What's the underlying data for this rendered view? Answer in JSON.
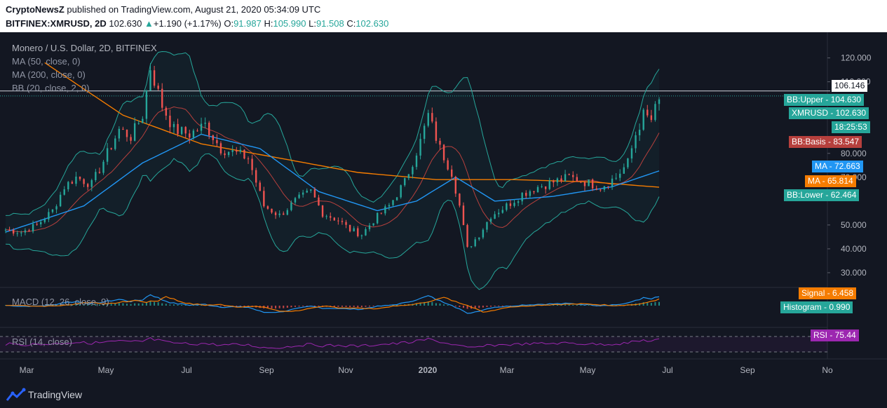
{
  "header": {
    "publisher": "CryptoNewsZ",
    "published_text": "published on TradingView.com, August 21, 2020 05:34:09 UTC",
    "symbol": "BITFINEX:XMRUSD, 2D",
    "last": "102.630",
    "change_arrow": "▲",
    "change": "+1.190 (+1.17%)",
    "o_label": "O:",
    "o_value": "91.987",
    "h_label": "H:",
    "h_value": "105.990",
    "l_label": "L:",
    "l_value": "91.508",
    "c_label": "C:",
    "c_value": "102.630"
  },
  "legend": {
    "title": "Monero / U.S. Dollar, 2D, BITFINEX",
    "ma50": "MA (50, close, 0)",
    "ma200": "MA (200, close, 0)",
    "bb": "BB (20, close, 2, 0)",
    "macd": "MACD (12, 26, close, 9)",
    "rsi": "RSI (14, close)"
  },
  "tags": {
    "crosshair": "106.146",
    "bb_upper": "BB:Upper - 104.630",
    "xmrusd": "XMRUSD - 102.630",
    "countdown": "18:25:53",
    "bb_basis": "BB:Basis - 83.547",
    "ma_blue": "MA - 72.663",
    "ma_orange": "MA - 65.814",
    "bb_lower": "BB:Lower - 62.464",
    "signal": "Signal - 6.458",
    "histogram": "Histogram - 0.990",
    "rsi": "RSI - 75.44"
  },
  "colors": {
    "background": "#131722",
    "up": "#26a69a",
    "down": "#ef5350",
    "ma50": "#2196f3",
    "ma200": "#f57c00",
    "bb": "#26a69a",
    "bb_basis": "#b7403d",
    "macd": "#2196f3",
    "signal": "#f57c00",
    "rsi": "#9c27b0"
  },
  "footer": {
    "brand": "TradingView"
  },
  "chart_data": {
    "type": "candlestick",
    "symbol": "XMRUSD",
    "y_ticks": [
      "120.000",
      "110.000",
      "80.000",
      "70.000",
      "50.000",
      "40.000",
      "30.000"
    ],
    "ylim": [
      25,
      124
    ],
    "x_tick_labels": [
      "Mar",
      "May",
      "Jul",
      "Sep",
      "Nov",
      "2020",
      "Mar",
      "May",
      "Jul",
      "Sep",
      "No"
    ],
    "close_series": [
      {
        "t": 0,
        "v": 48
      },
      {
        "t": 8,
        "v": 47
      },
      {
        "t": 16,
        "v": 50
      },
      {
        "t": 24,
        "v": 56
      },
      {
        "t": 30,
        "v": 66
      },
      {
        "t": 36,
        "v": 70
      },
      {
        "t": 44,
        "v": 67
      },
      {
        "t": 52,
        "v": 80
      },
      {
        "t": 58,
        "v": 90
      },
      {
        "t": 64,
        "v": 87
      },
      {
        "t": 70,
        "v": 96
      },
      {
        "t": 74,
        "v": 116
      },
      {
        "t": 80,
        "v": 100
      },
      {
        "t": 86,
        "v": 90
      },
      {
        "t": 94,
        "v": 88
      },
      {
        "t": 102,
        "v": 92
      },
      {
        "t": 110,
        "v": 82
      },
      {
        "t": 118,
        "v": 80
      },
      {
        "t": 124,
        "v": 78
      },
      {
        "t": 132,
        "v": 58
      },
      {
        "t": 140,
        "v": 54
      },
      {
        "t": 148,
        "v": 60
      },
      {
        "t": 156,
        "v": 64
      },
      {
        "t": 162,
        "v": 55
      },
      {
        "t": 170,
        "v": 52
      },
      {
        "t": 176,
        "v": 48
      },
      {
        "t": 182,
        "v": 46
      },
      {
        "t": 188,
        "v": 52
      },
      {
        "t": 196,
        "v": 58
      },
      {
        "t": 204,
        "v": 68
      },
      {
        "t": 212,
        "v": 85
      },
      {
        "t": 216,
        "v": 96
      },
      {
        "t": 222,
        "v": 82
      },
      {
        "t": 228,
        "v": 72
      },
      {
        "t": 232,
        "v": 58
      },
      {
        "t": 236,
        "v": 40
      },
      {
        "t": 242,
        "v": 46
      },
      {
        "t": 248,
        "v": 54
      },
      {
        "t": 256,
        "v": 58
      },
      {
        "t": 264,
        "v": 63
      },
      {
        "t": 272,
        "v": 66
      },
      {
        "t": 280,
        "v": 68
      },
      {
        "t": 288,
        "v": 70
      },
      {
        "t": 296,
        "v": 68
      },
      {
        "t": 304,
        "v": 66
      },
      {
        "t": 312,
        "v": 70
      },
      {
        "t": 318,
        "v": 76
      },
      {
        "t": 322,
        "v": 88
      },
      {
        "t": 326,
        "v": 96
      },
      {
        "t": 330,
        "v": 94
      },
      {
        "t": 334,
        "v": 102.63
      }
    ],
    "ma50_series": [
      {
        "t": 0,
        "v": 47
      },
      {
        "t": 40,
        "v": 58
      },
      {
        "t": 70,
        "v": 76
      },
      {
        "t": 100,
        "v": 88
      },
      {
        "t": 130,
        "v": 82
      },
      {
        "t": 160,
        "v": 64
      },
      {
        "t": 190,
        "v": 56
      },
      {
        "t": 210,
        "v": 60
      },
      {
        "t": 230,
        "v": 70
      },
      {
        "t": 250,
        "v": 60
      },
      {
        "t": 280,
        "v": 62
      },
      {
        "t": 310,
        "v": 66
      },
      {
        "t": 334,
        "v": 72.663
      }
    ],
    "ma200_series": [
      {
        "t": 20,
        "v": 118
      },
      {
        "t": 60,
        "v": 96
      },
      {
        "t": 100,
        "v": 84
      },
      {
        "t": 140,
        "v": 78
      },
      {
        "t": 180,
        "v": 72
      },
      {
        "t": 220,
        "v": 69
      },
      {
        "t": 260,
        "v": 69
      },
      {
        "t": 300,
        "v": 68
      },
      {
        "t": 334,
        "v": 65.814
      }
    ],
    "bb_upper_value": 104.63,
    "bb_basis_value": 83.547,
    "bb_lower_value": 62.464,
    "last_close": 102.63,
    "crosshair_value": 106.146,
    "macd_signal": 6.458,
    "macd_histogram": 0.99,
    "rsi_value": 75.44
  }
}
